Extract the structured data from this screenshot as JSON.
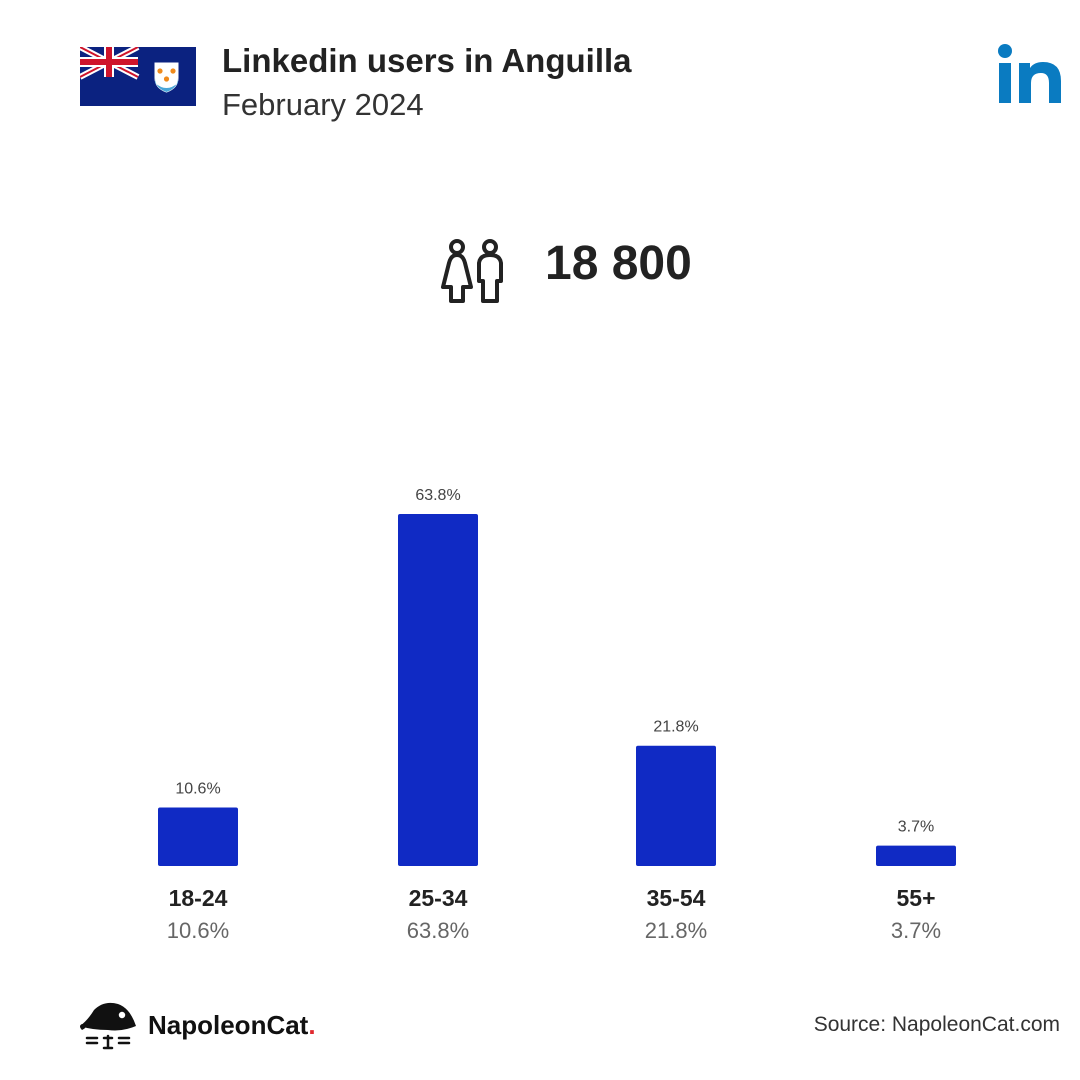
{
  "header": {
    "title": "Linkedin users in Anguilla",
    "subtitle": "February 2024"
  },
  "summary": {
    "total_users": "18 800"
  },
  "chart_data": {
    "type": "bar",
    "categories": [
      "18-24",
      "25-34",
      "35-54",
      "55+"
    ],
    "values": [
      10.6,
      63.8,
      21.8,
      3.7
    ],
    "value_labels": [
      "10.6%",
      "63.8%",
      "21.8%",
      "3.7%"
    ],
    "title": "",
    "xlabel": "",
    "ylabel": "",
    "ylim": [
      0,
      63.8
    ],
    "grid": false,
    "bar_color": "#102ac4"
  },
  "footer": {
    "brand_name": "NapoleonCat",
    "brand_dot": ".",
    "source": "Source: NapoleonCat.com"
  },
  "colors": {
    "bar": "#102ac4",
    "linkedin_blue": "#0a7bc1",
    "flag_blue": "#0b2280",
    "brand_dot": "#e0282e"
  },
  "icons": {
    "flag": "anguilla-flag-icon",
    "linkedin": "linkedin-logo-icon",
    "users": "users-icon",
    "brand": "napoleoncat-logo-icon"
  }
}
